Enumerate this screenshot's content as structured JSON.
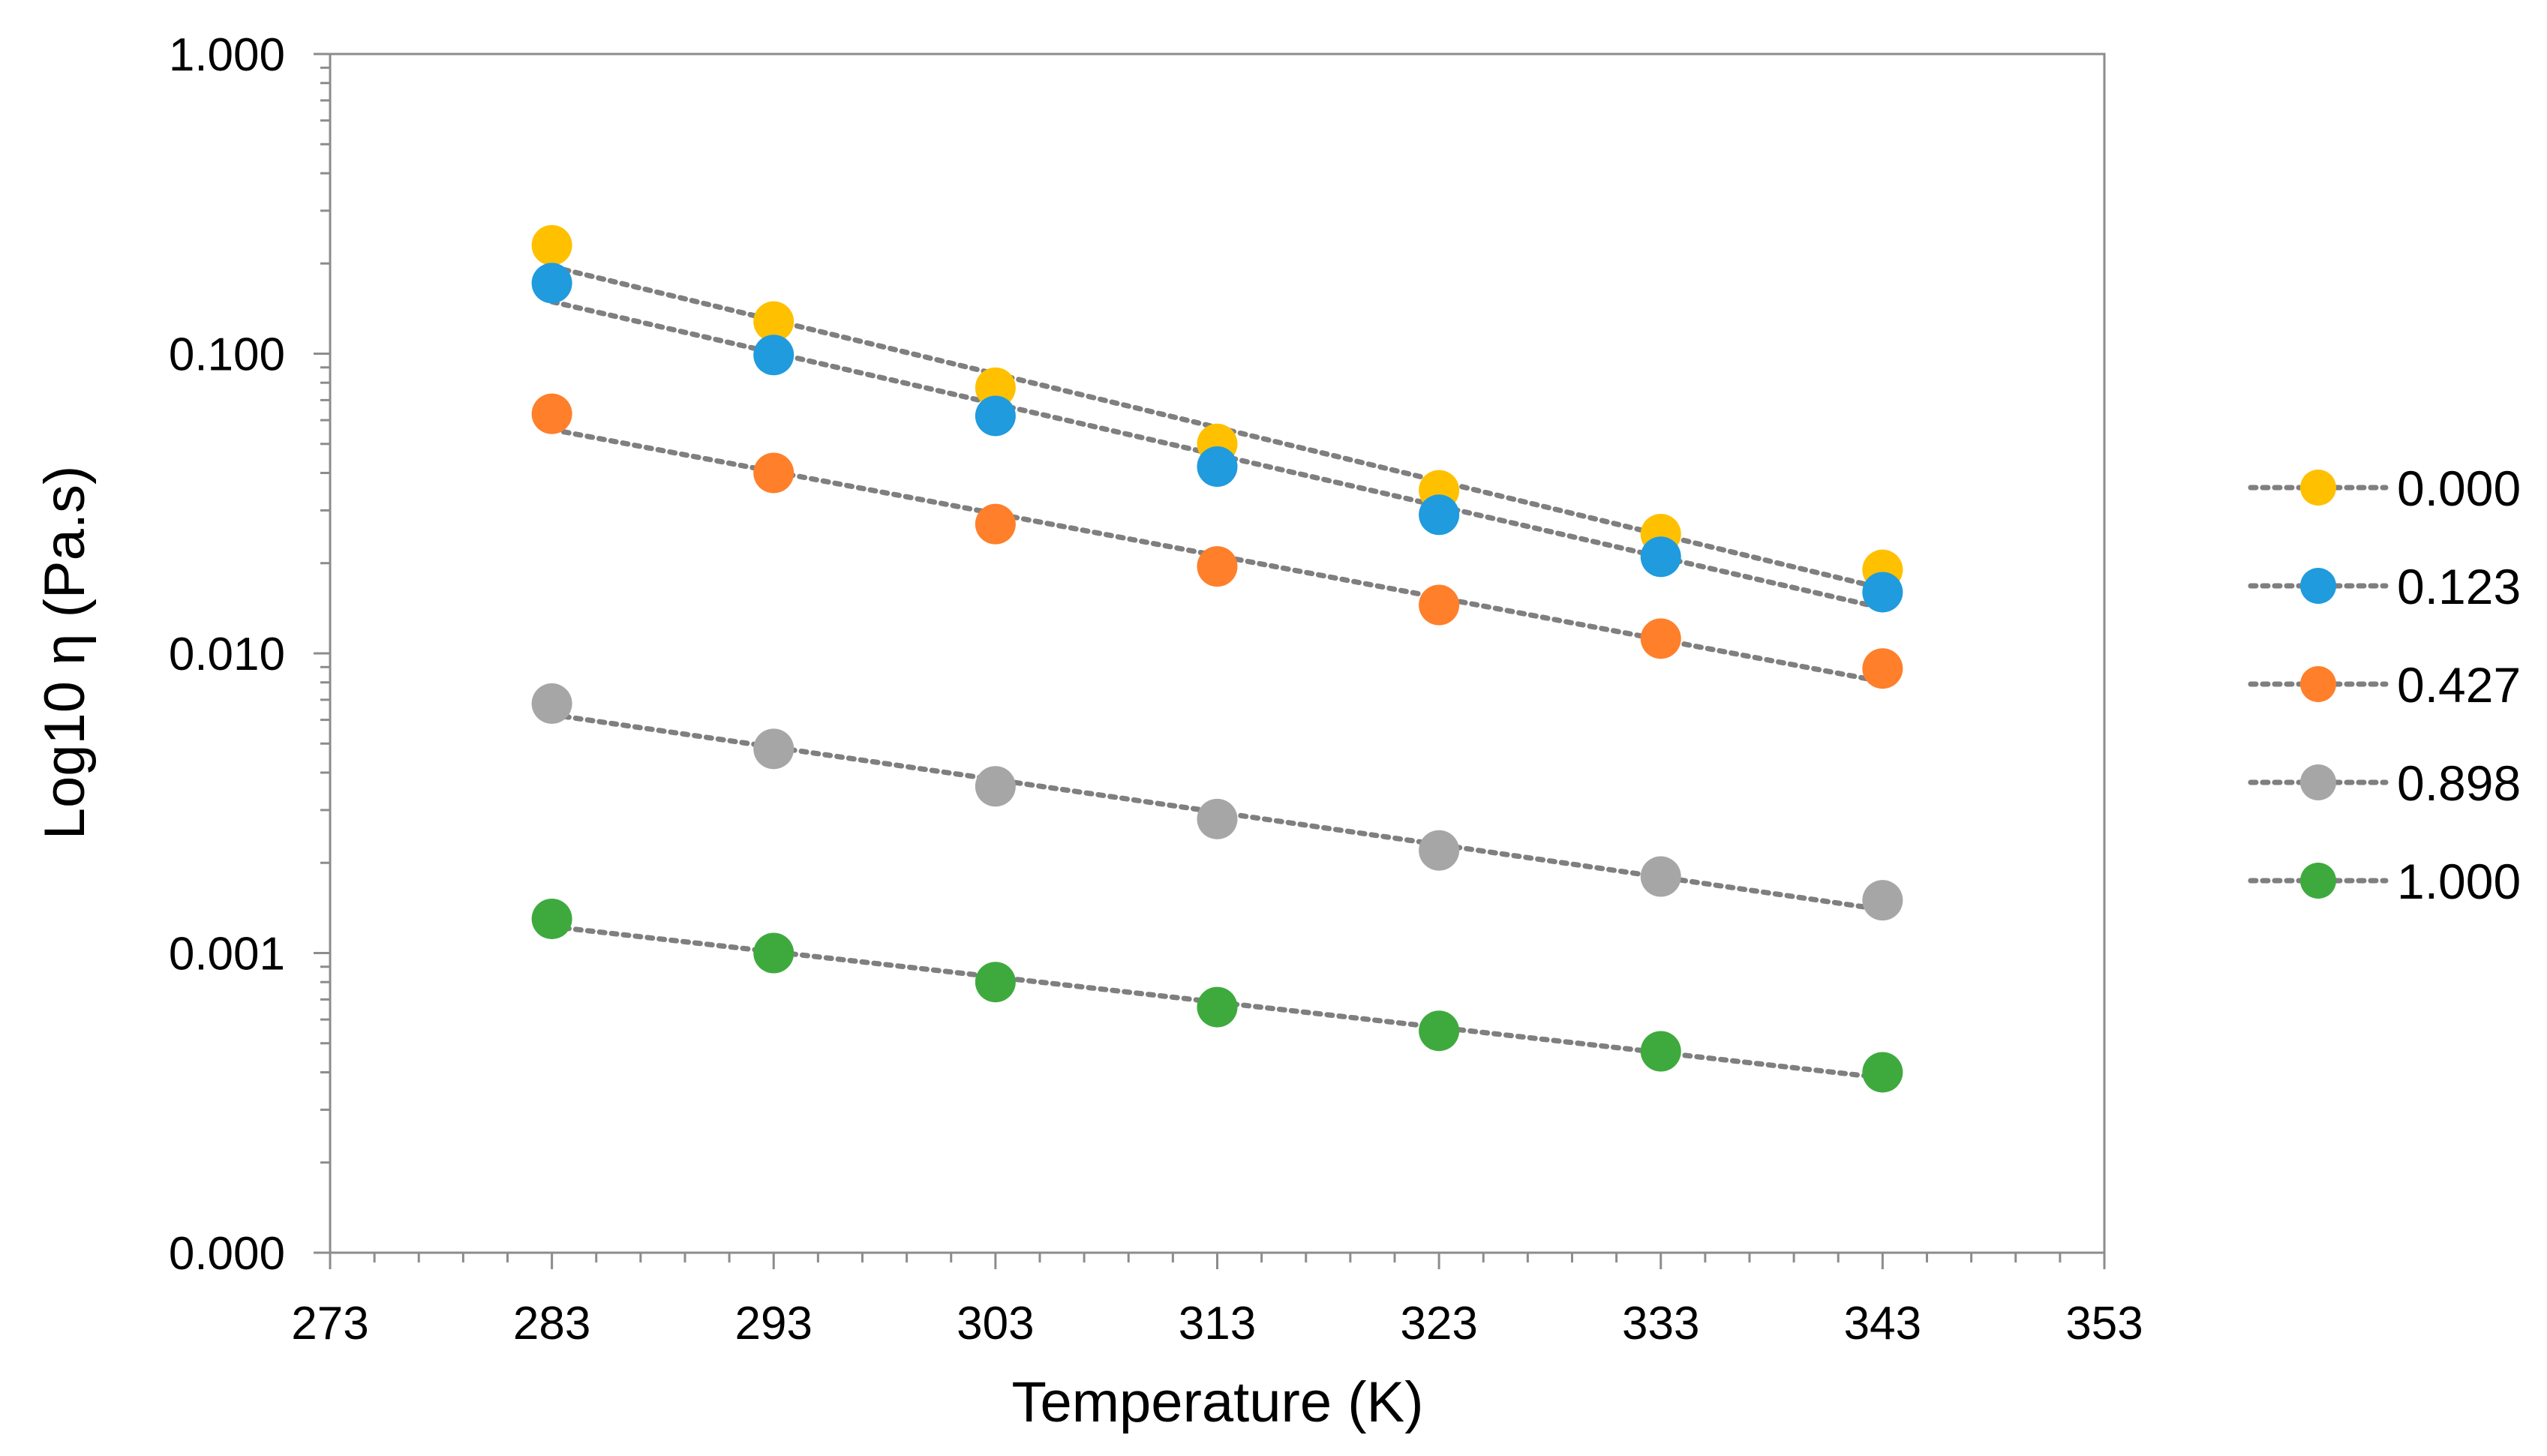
{
  "chart_data": {
    "type": "scatter",
    "title": "",
    "xlabel": "Temperature (K)",
    "ylabel": "Log10 η (Pa.s)",
    "xlim": [
      273,
      353
    ],
    "ylim_log": [
      -4,
      0
    ],
    "x_ticks": [
      "273",
      "283",
      "293",
      "303",
      "313",
      "323",
      "333",
      "343",
      "353"
    ],
    "y_ticks": [
      "1.000",
      "0.100",
      "0.010",
      "0.001",
      "0.000"
    ],
    "y_scale": "log",
    "grid": false,
    "legend_position": "right",
    "trendline": "dotted exponential",
    "x": [
      283,
      293,
      303,
      313,
      323,
      333,
      343
    ],
    "series": [
      {
        "name": "0.000",
        "color": "#FFC000",
        "values": [
          0.23,
          0.128,
          0.077,
          0.05,
          0.035,
          0.025,
          0.019
        ]
      },
      {
        "name": "0.123",
        "color": "#1F9BDE",
        "values": [
          0.172,
          0.099,
          0.062,
          0.042,
          0.029,
          0.021,
          0.016
        ]
      },
      {
        "name": "0.427",
        "color": "#FF7F2A",
        "values": [
          0.063,
          0.04,
          0.027,
          0.0195,
          0.0145,
          0.0112,
          0.0089
        ]
      },
      {
        "name": "0.898",
        "color": "#A6A6A6",
        "values": [
          0.0068,
          0.0048,
          0.0036,
          0.0028,
          0.0022,
          0.0018,
          0.0015
        ]
      },
      {
        "name": "1.000",
        "color": "#3EAA3E",
        "values": [
          0.0013,
          0.001,
          0.0008,
          0.00066,
          0.00055,
          0.00047,
          0.0004
        ]
      }
    ]
  }
}
